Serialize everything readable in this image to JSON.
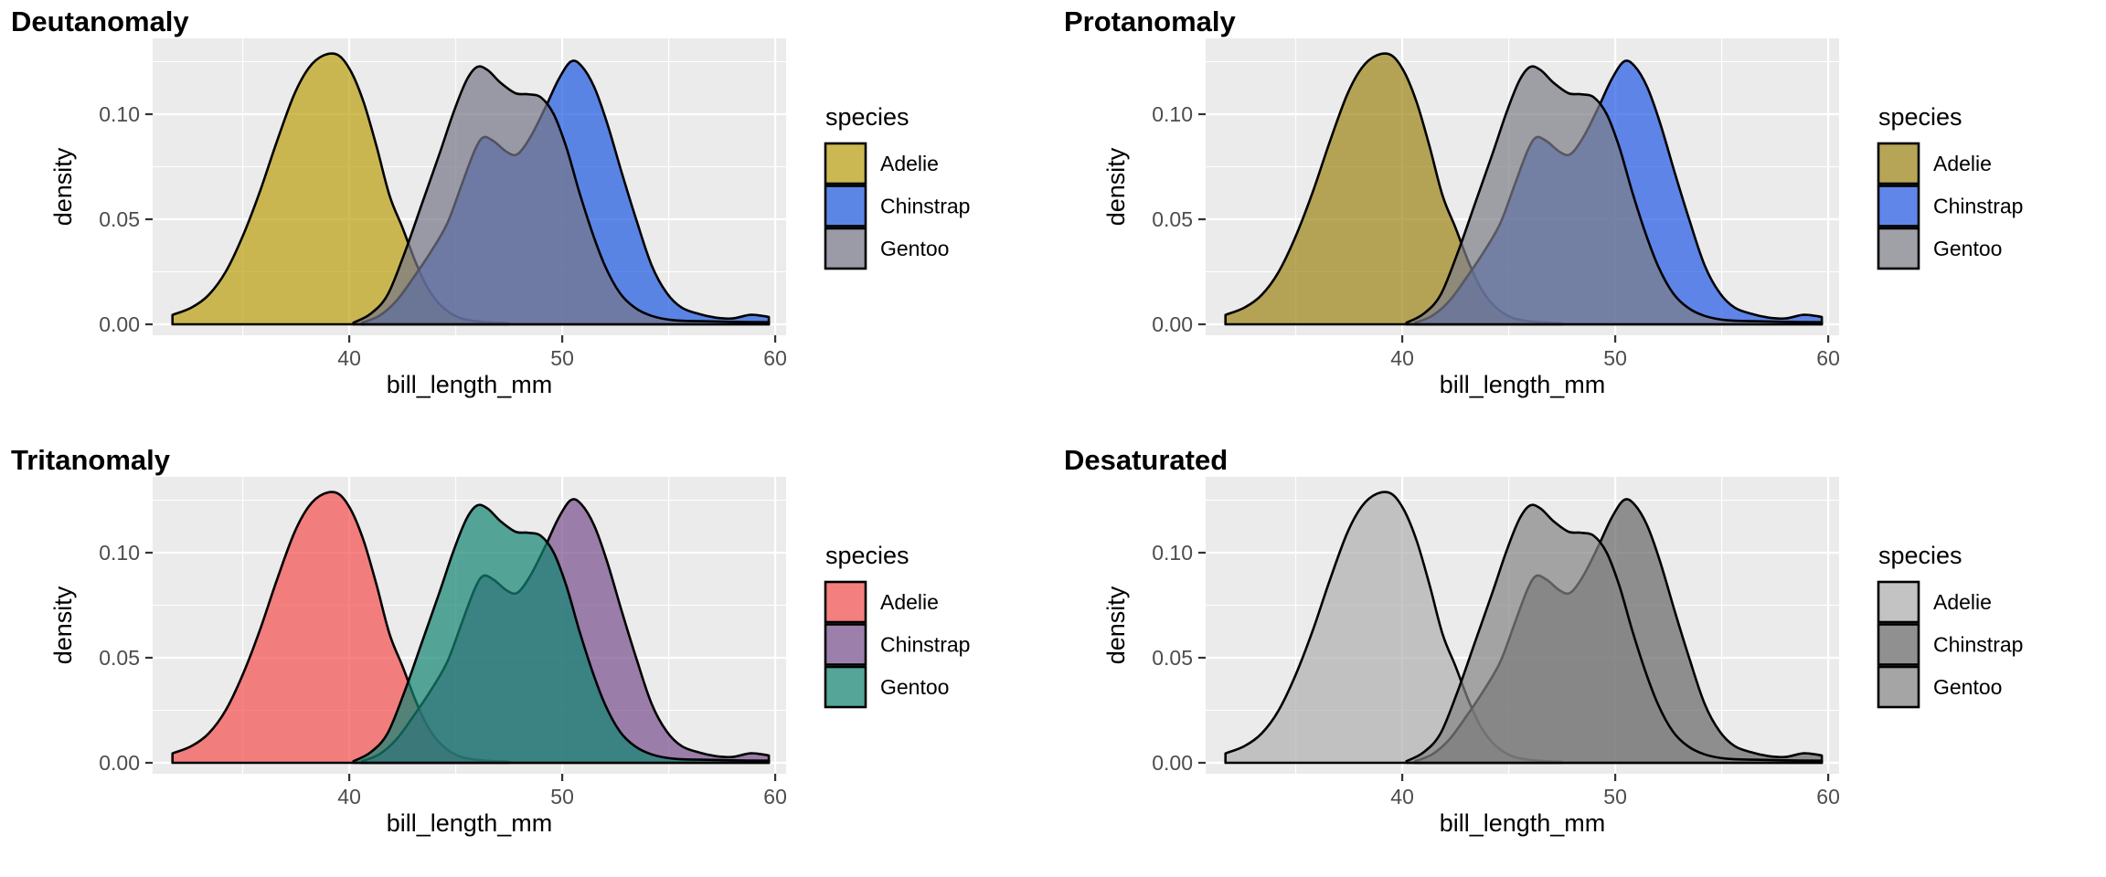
{
  "page": {
    "background": "#ffffff",
    "description": "Color-vision-deficiency simulation grid of a penguin bill-length density plot"
  },
  "chart_data": {
    "type": "area",
    "subtype": "overlapping-density-curves",
    "xlabel": "bill_length_mm",
    "ylabel": "density",
    "legend_title": "species",
    "xlim": [
      30.77,
      60.51
    ],
    "ylim": [
      -0.0052,
      0.1361
    ],
    "x_major_ticks": [
      {
        "value": 40,
        "label": "40"
      },
      {
        "value": 50,
        "label": "50"
      },
      {
        "value": 60,
        "label": "60"
      }
    ],
    "x_minor_gridlines": [
      35,
      45,
      55
    ],
    "y_major_ticks": [
      {
        "value": 0.0,
        "label": "0.00"
      },
      {
        "value": 0.05,
        "label": "0.05"
      },
      {
        "value": 0.1,
        "label": "0.10"
      }
    ],
    "y_minor_gridlines": [
      0.025,
      0.075,
      0.125
    ],
    "grid_on": true,
    "legend_position": "right",
    "panel_bg": "#EBEBEB",
    "grid_color": "#FFFFFF",
    "stroke_color": "#000000",
    "fill_alpha": 0.7,
    "tick_label_color": "#4D4D4D",
    "tick_mark_color": "#333333",
    "legend_key_bg": "#F2F2F2",
    "draw_order": [
      "Adelie",
      "Chinstrap",
      "Gentoo"
    ],
    "panels": [
      {
        "title": "Deutanomaly",
        "colors": {
          "Adelie": "#BA9F10",
          "Chinstrap": "#1C58E1",
          "Gentoo": "#767687"
        }
      },
      {
        "title": "Protanomaly",
        "colors": {
          "Adelie": "#9D8515",
          "Chinstrap": "#2458E7",
          "Gentoo": "#7E7D88"
        }
      },
      {
        "title": "Tritanomaly",
        "colors": {
          "Adelie": "#F54E4F",
          "Chinstrap": "#774F8B",
          "Gentoo": "#128574"
        }
      },
      {
        "title": "Desaturated",
        "colors": {
          "Adelie": "#AFAFAF",
          "Chinstrap": "#666666",
          "Gentoo": "#858585"
        }
      }
    ],
    "legend_entries": [
      "Adelie",
      "Chinstrap",
      "Gentoo"
    ],
    "series": [
      {
        "name": "Adelie",
        "points": [
          [
            31.7,
            0.0045
          ],
          [
            32.6,
            0.008
          ],
          [
            33.4,
            0.014
          ],
          [
            34.2,
            0.025
          ],
          [
            35.0,
            0.042
          ],
          [
            35.8,
            0.063
          ],
          [
            36.6,
            0.087
          ],
          [
            37.4,
            0.109
          ],
          [
            38.1,
            0.122
          ],
          [
            38.8,
            0.128
          ],
          [
            39.5,
            0.128
          ],
          [
            40.1,
            0.12
          ],
          [
            40.7,
            0.105
          ],
          [
            41.3,
            0.084
          ],
          [
            41.9,
            0.061
          ],
          [
            42.5,
            0.046
          ],
          [
            43.1,
            0.03
          ],
          [
            43.7,
            0.017
          ],
          [
            44.4,
            0.008
          ],
          [
            45.2,
            0.003
          ],
          [
            46.2,
            0.0012
          ],
          [
            47.5,
            0.0005
          ]
        ]
      },
      {
        "name": "Chinstrap",
        "points": [
          [
            40.6,
            0.0008
          ],
          [
            41.4,
            0.004
          ],
          [
            42.2,
            0.011
          ],
          [
            43.0,
            0.022
          ],
          [
            43.8,
            0.034
          ],
          [
            44.6,
            0.048
          ],
          [
            45.3,
            0.067
          ],
          [
            45.9,
            0.083
          ],
          [
            46.3,
            0.089
          ],
          [
            46.8,
            0.087
          ],
          [
            47.4,
            0.082
          ],
          [
            47.9,
            0.081
          ],
          [
            48.5,
            0.089
          ],
          [
            49.2,
            0.103
          ],
          [
            49.8,
            0.116
          ],
          [
            50.4,
            0.125
          ],
          [
            50.9,
            0.123
          ],
          [
            51.5,
            0.113
          ],
          [
            52.1,
            0.096
          ],
          [
            52.8,
            0.072
          ],
          [
            53.5,
            0.049
          ],
          [
            54.2,
            0.028
          ],
          [
            54.9,
            0.015
          ],
          [
            55.6,
            0.008
          ],
          [
            56.4,
            0.005
          ],
          [
            57.2,
            0.0032
          ],
          [
            58.0,
            0.0028
          ],
          [
            58.8,
            0.0045
          ],
          [
            59.4,
            0.004
          ],
          [
            59.7,
            0.0035
          ]
        ]
      },
      {
        "name": "Gentoo",
        "points": [
          [
            40.2,
            0.0008
          ],
          [
            41.0,
            0.005
          ],
          [
            41.8,
            0.014
          ],
          [
            42.6,
            0.034
          ],
          [
            43.4,
            0.057
          ],
          [
            44.2,
            0.08
          ],
          [
            44.9,
            0.101
          ],
          [
            45.5,
            0.116
          ],
          [
            46.0,
            0.1225
          ],
          [
            46.5,
            0.121
          ],
          [
            47.1,
            0.115
          ],
          [
            47.8,
            0.11
          ],
          [
            48.4,
            0.1095
          ],
          [
            49.0,
            0.108
          ],
          [
            49.6,
            0.1
          ],
          [
            50.2,
            0.084
          ],
          [
            50.8,
            0.063
          ],
          [
            51.4,
            0.044
          ],
          [
            52.0,
            0.028
          ],
          [
            52.7,
            0.015
          ],
          [
            53.4,
            0.008
          ],
          [
            54.2,
            0.004
          ],
          [
            55.2,
            0.002
          ],
          [
            56.5,
            0.0015
          ],
          [
            58.0,
            0.0012
          ],
          [
            59.7,
            0.001
          ]
        ]
      }
    ]
  }
}
